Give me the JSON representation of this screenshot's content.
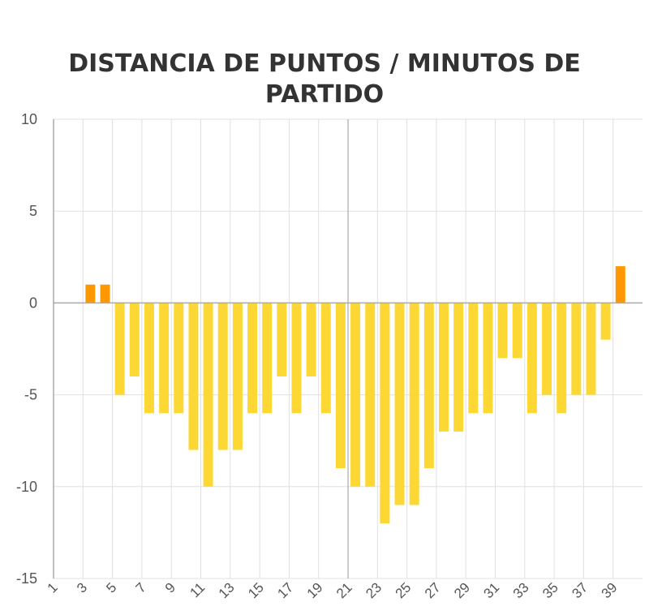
{
  "chart_data": {
    "type": "bar",
    "title": "DISTANCIA DE PUNTOS / MINUTOS DE PARTIDO",
    "xlabel": "",
    "ylabel": "",
    "ylim": [
      -15,
      10
    ],
    "y_ticks": [
      "10",
      "5",
      "0",
      "-5",
      "-10",
      "-15"
    ],
    "grid": true,
    "legend": "none",
    "categories": [
      1,
      2,
      3,
      4,
      5,
      6,
      7,
      8,
      9,
      10,
      11,
      12,
      13,
      14,
      15,
      16,
      17,
      18,
      19,
      20,
      21,
      22,
      23,
      24,
      25,
      26,
      27,
      28,
      29,
      30,
      31,
      32,
      33,
      34,
      35,
      36,
      37,
      38,
      39,
      40
    ],
    "x_tick_labels": [
      "1",
      "3",
      "5",
      "7",
      "9",
      "11",
      "13",
      "15",
      "17",
      "19",
      "21",
      "23",
      "25",
      "27",
      "29",
      "31",
      "33",
      "35",
      "37",
      "39"
    ],
    "values": [
      0,
      0,
      1,
      1,
      -5,
      -4,
      -6,
      -6,
      -6,
      -8,
      -10,
      -8,
      -8,
      -6,
      -6,
      -4,
      -6,
      -4,
      -6,
      -9,
      -10,
      -10,
      -12,
      -11,
      -11,
      -9,
      -7,
      -7,
      -6,
      -6,
      -3,
      -3,
      -6,
      -5,
      -6,
      -5,
      -5,
      -2,
      2,
      null
    ],
    "colors": {
      "positive": "#FF9800",
      "negative": "#FDD835",
      "grid": "#e0e0e0",
      "axis": "#aaaaaa"
    }
  }
}
